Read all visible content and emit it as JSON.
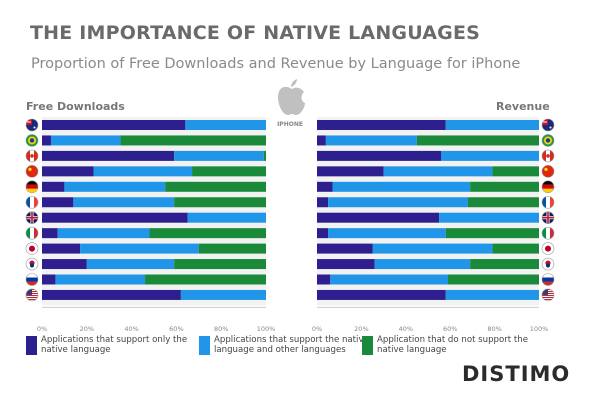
{
  "title": "THE IMPORTANCE OF NATIVE LANGUAGES",
  "subtitle": "Proportion of Free Downloads and Revenue by Language for iPhone",
  "device_label": "IPHONE",
  "brand": "DISTIMO",
  "colors": {
    "native_only": "#2e1f8f",
    "native_and_other": "#2196e8",
    "no_native": "#1a8a3a"
  },
  "legend": [
    {
      "label": "Applications that support only the native language",
      "color": "#2e1f8f"
    },
    {
      "label": "Applications that support the native language and other languages",
      "color": "#2196e8"
    },
    {
      "label": "Application that do not support the native language",
      "color": "#1a8a3a"
    }
  ],
  "flags": [
    {
      "icon": "australia-flag-icon",
      "colors": [
        "#1a2a7a",
        "#c8102e",
        "#ffffff"
      ]
    },
    {
      "icon": "brazil-flag-icon",
      "colors": [
        "#1f9a3a",
        "#f2d21b",
        "#203a8a"
      ]
    },
    {
      "icon": "canada-flag-icon",
      "colors": [
        "#d52b1e",
        "#ffffff",
        "#d52b1e"
      ]
    },
    {
      "icon": "china-flag-icon",
      "colors": [
        "#de2910",
        "#ffde00",
        "#de2910"
      ]
    },
    {
      "icon": "germany-flag-icon",
      "colors": [
        "#000000",
        "#dd0000",
        "#ffce00"
      ]
    },
    {
      "icon": "france-flag-icon",
      "colors": [
        "#0055a4",
        "#ffffff",
        "#ef4135"
      ]
    },
    {
      "icon": "uk-flag-icon",
      "colors": [
        "#012169",
        "#c8102e",
        "#ffffff"
      ]
    },
    {
      "icon": "italy-flag-icon",
      "colors": [
        "#009246",
        "#ffffff",
        "#ce2b37"
      ]
    },
    {
      "icon": "japan-flag-icon",
      "colors": [
        "#ffffff",
        "#bc002d",
        "#ffffff"
      ]
    },
    {
      "icon": "korea-flag-icon",
      "colors": [
        "#ffffff",
        "#c60c30",
        "#003478"
      ]
    },
    {
      "icon": "russia-flag-icon",
      "colors": [
        "#ffffff",
        "#0039a6",
        "#d52b1e"
      ]
    },
    {
      "icon": "usa-flag-icon",
      "colors": [
        "#b22234",
        "#ffffff",
        "#3c3b6e"
      ]
    }
  ],
  "chart_data": [
    {
      "type": "bar",
      "orientation": "horizontal",
      "stacked": true,
      "title": "Free Downloads",
      "x_ticks": [
        "0%",
        "20%",
        "40%",
        "60%",
        "80%",
        "100%"
      ],
      "xlim": [
        0,
        100
      ],
      "series": [
        {
          "name": "Applications that support only the native language",
          "values": [
            64,
            4,
            59,
            23,
            10,
            14,
            65,
            7,
            17,
            20,
            6,
            62
          ]
        },
        {
          "name": "Applications that support the native language and other languages",
          "values": [
            36,
            31,
            40,
            44,
            45,
            45,
            35,
            41,
            53,
            39,
            40,
            38
          ]
        },
        {
          "name": "Application that do not support the native language",
          "values": [
            0,
            65,
            1,
            33,
            45,
            41,
            0,
            52,
            30,
            41,
            54,
            0
          ]
        }
      ]
    },
    {
      "type": "bar",
      "orientation": "horizontal",
      "stacked": true,
      "title": "Revenue",
      "x_ticks": [
        "0%",
        "20%",
        "40%",
        "60%",
        "80%",
        "100%"
      ],
      "xlim": [
        0,
        100
      ],
      "series": [
        {
          "name": "Applications that support only the native language",
          "values": [
            58,
            4,
            56,
            30,
            7,
            5,
            55,
            5,
            25,
            26,
            6,
            58
          ]
        },
        {
          "name": "Applications that support the native language and other languages",
          "values": [
            42,
            41,
            44,
            49,
            62,
            63,
            45,
            53,
            54,
            43,
            53,
            42
          ]
        },
        {
          "name": "Application that do not support the native language",
          "values": [
            0,
            55,
            0,
            21,
            31,
            32,
            0,
            42,
            21,
            31,
            41,
            0
          ]
        }
      ]
    }
  ]
}
